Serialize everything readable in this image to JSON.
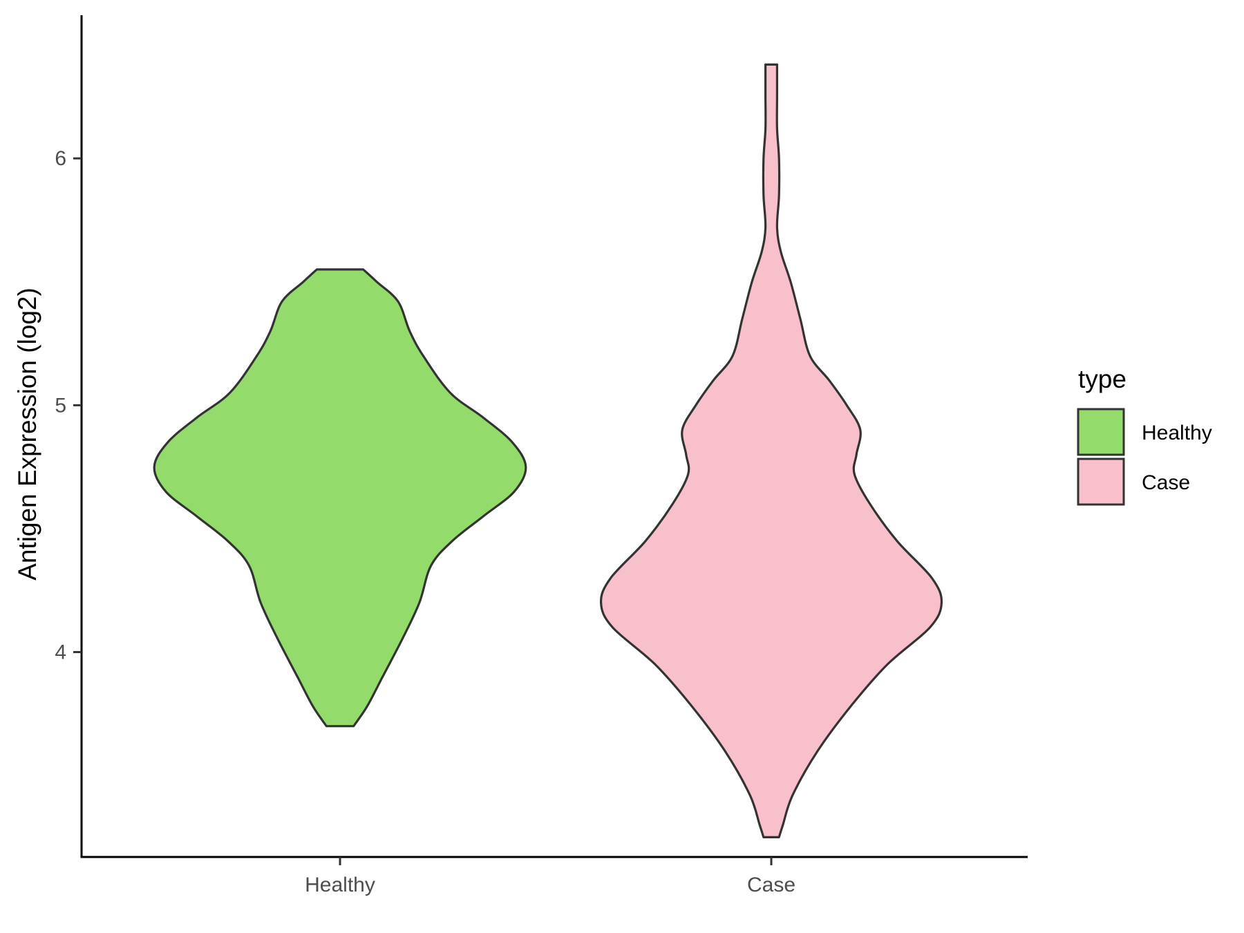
{
  "chart_data": {
    "type": "violin",
    "title": "",
    "xlabel": "",
    "ylabel": "Antigen Expression (log2)",
    "ylim": [
      3.17,
      6.58
    ],
    "y_ticks": [
      4,
      5,
      6
    ],
    "y_tick_labels": [
      "4",
      "5",
      "6"
    ],
    "categories": [
      "Healthy",
      "Case"
    ],
    "grid": false,
    "legend": {
      "title": "type",
      "position": "right",
      "entries": [
        {
          "label": "Healthy",
          "color": "#93DC6B"
        },
        {
          "label": "Case",
          "color": "#F7C0CB"
        }
      ]
    },
    "series": [
      {
        "name": "Healthy",
        "color": "#93DC6B",
        "y_min": 3.7,
        "y_max": 5.55,
        "profile": [
          [
            3.7,
            0.07
          ],
          [
            3.78,
            0.14
          ],
          [
            3.9,
            0.22
          ],
          [
            4.05,
            0.32
          ],
          [
            4.2,
            0.41
          ],
          [
            4.35,
            0.47
          ],
          [
            4.45,
            0.58
          ],
          [
            4.55,
            0.74
          ],
          [
            4.65,
            0.9
          ],
          [
            4.75,
            0.96
          ],
          [
            4.85,
            0.89
          ],
          [
            4.95,
            0.74
          ],
          [
            5.05,
            0.57
          ],
          [
            5.2,
            0.43
          ],
          [
            5.3,
            0.36
          ],
          [
            5.42,
            0.3
          ],
          [
            5.5,
            0.19
          ],
          [
            5.55,
            0.12
          ]
        ]
      },
      {
        "name": "Case",
        "color": "#F7C0CB",
        "y_min": 3.25,
        "y_max": 6.38,
        "profile": [
          [
            3.25,
            0.04
          ],
          [
            3.3,
            0.06
          ],
          [
            3.42,
            0.11
          ],
          [
            3.6,
            0.24
          ],
          [
            3.78,
            0.41
          ],
          [
            3.95,
            0.6
          ],
          [
            4.1,
            0.82
          ],
          [
            4.2,
            0.88
          ],
          [
            4.3,
            0.83
          ],
          [
            4.45,
            0.65
          ],
          [
            4.6,
            0.51
          ],
          [
            4.72,
            0.43
          ],
          [
            4.8,
            0.44
          ],
          [
            4.9,
            0.46
          ],
          [
            5.0,
            0.39
          ],
          [
            5.1,
            0.3
          ],
          [
            5.2,
            0.2
          ],
          [
            5.35,
            0.15
          ],
          [
            5.5,
            0.1
          ],
          [
            5.62,
            0.05
          ],
          [
            5.72,
            0.03
          ],
          [
            5.85,
            0.04
          ],
          [
            6.0,
            0.04
          ],
          [
            6.12,
            0.03
          ],
          [
            6.25,
            0.03
          ],
          [
            6.38,
            0.03
          ]
        ]
      }
    ]
  }
}
